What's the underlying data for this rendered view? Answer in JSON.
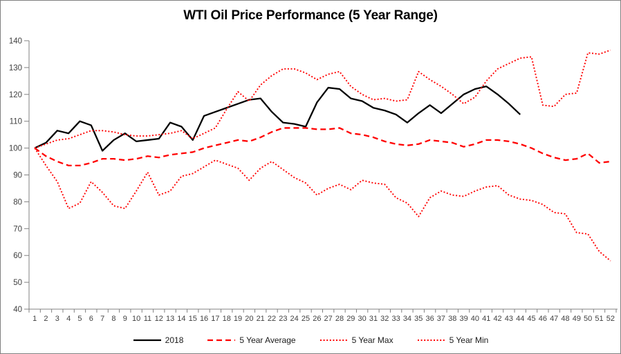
{
  "chart_data": {
    "type": "line",
    "title": "WTI Oil Price Performance (5 Year Range)",
    "xlabel": "",
    "ylabel": "",
    "ylim": [
      40,
      140
    ],
    "y_ticks": [
      40,
      50,
      60,
      70,
      80,
      90,
      100,
      110,
      120,
      130,
      140
    ],
    "x": [
      1,
      2,
      3,
      4,
      5,
      6,
      7,
      8,
      9,
      10,
      11,
      12,
      13,
      14,
      15,
      16,
      17,
      18,
      19,
      20,
      21,
      22,
      23,
      24,
      25,
      26,
      27,
      28,
      29,
      30,
      31,
      32,
      33,
      34,
      35,
      36,
      37,
      38,
      39,
      40,
      41,
      42,
      43,
      44,
      45,
      46,
      47,
      48,
      49,
      50,
      51,
      52
    ],
    "grid": false,
    "legend_position": "bottom",
    "series": [
      {
        "name": "2018",
        "color": "#000000",
        "style": "solid",
        "values": [
          100,
          102,
          106.5,
          105.5,
          110,
          108.5,
          99,
          103,
          105.5,
          102.5,
          103,
          103.5,
          109.5,
          108,
          103,
          112,
          113.5,
          115,
          116.5,
          118,
          118.5,
          113.5,
          109.5,
          109,
          108,
          117,
          122.5,
          122,
          118.5,
          117.5,
          115,
          114,
          112.5,
          109.5,
          113,
          116,
          113,
          116.5,
          120,
          122,
          123,
          120,
          116.5,
          112.5,
          null,
          null,
          null,
          null,
          null,
          null,
          null,
          null
        ]
      },
      {
        "name": "5 Year Average",
        "color": "#FF0000",
        "style": "dashed",
        "values": [
          100,
          97,
          95,
          93.5,
          93.5,
          94.5,
          96,
          96,
          95.5,
          96,
          97,
          96.5,
          97.5,
          98,
          98.5,
          100,
          101,
          102,
          103,
          102.5,
          104,
          106,
          107.5,
          107.5,
          107.5,
          107,
          107,
          107.5,
          105.5,
          105,
          104,
          102.5,
          101.5,
          101,
          101.5,
          103,
          102.5,
          102,
          100.5,
          101.5,
          103,
          103,
          102.5,
          101.5,
          100,
          98,
          96.5,
          95.5,
          96,
          98,
          94.5,
          95
        ]
      },
      {
        "name": "5 Year Max",
        "color": "#FF0000",
        "style": "dotted",
        "values": [
          100,
          101.5,
          103,
          103.5,
          105,
          106.5,
          106.5,
          106,
          105,
          104.5,
          104.5,
          105,
          105.5,
          106.5,
          103.5,
          105.5,
          107.5,
          114.5,
          121,
          117.5,
          123.5,
          127,
          129.5,
          129.5,
          128,
          125.5,
          127.5,
          128.5,
          123,
          120,
          118,
          118.5,
          117.5,
          118,
          128.5,
          125.5,
          123,
          120,
          116.5,
          119,
          125,
          129.5,
          131.5,
          133.5,
          134,
          116,
          115.5,
          120,
          120.5,
          135.5,
          135,
          136.5
        ]
      },
      {
        "name": "5 Year Min",
        "color": "#FF0000",
        "style": "dotted",
        "values": [
          100,
          93.5,
          87.5,
          77.5,
          79.5,
          87.5,
          83.5,
          78.5,
          77.5,
          84,
          91,
          82.5,
          84,
          89.5,
          90.5,
          93,
          95.5,
          94,
          92.5,
          88,
          92.5,
          95,
          92,
          89,
          87,
          82.5,
          85,
          86.5,
          84.5,
          88,
          87,
          86.5,
          81.5,
          79.5,
          74.5,
          81.5,
          84,
          82.5,
          82,
          84,
          85.5,
          86,
          82.5,
          81,
          80.5,
          79,
          76,
          75.5,
          68.5,
          68,
          61.5,
          58
        ]
      }
    ]
  },
  "style": {
    "axis_color": "#808080",
    "tick_label_color": "#3f3f3f",
    "border_color": "#7f7f7f",
    "background": "#ffffff"
  }
}
